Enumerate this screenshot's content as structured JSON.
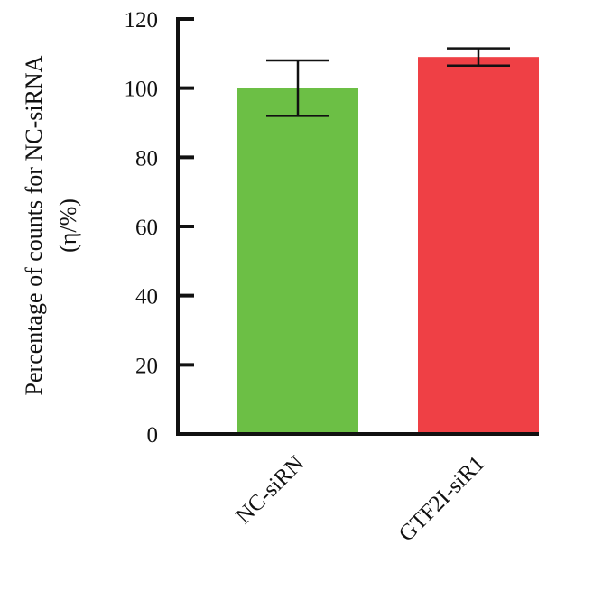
{
  "chart_data": {
    "type": "bar",
    "categories": [
      "NC-siRN",
      "GTF2I-siR1"
    ],
    "values": [
      100,
      109
    ],
    "error": [
      [
        92,
        108
      ],
      [
        106.5,
        111.5
      ]
    ],
    "colors": [
      "#6cbf45",
      "#ef4045"
    ],
    "ylabel": [
      "Percentage of counts for NC-siRNA",
      "(η/%)"
    ],
    "ylim": [
      0,
      120
    ],
    "yticks": [
      "0",
      "20",
      "40",
      "60",
      "80",
      "100",
      "120"
    ],
    "grid": false
  }
}
